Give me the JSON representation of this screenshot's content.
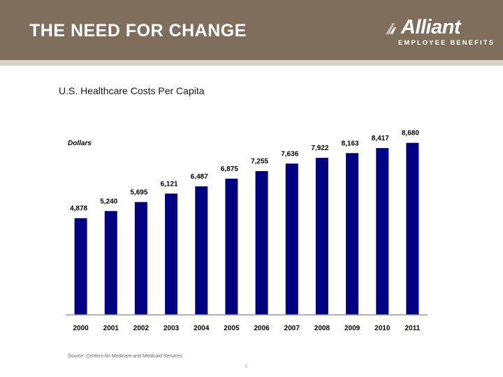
{
  "header": {
    "title": "THE NEED FOR CHANGE",
    "logo": {
      "name": "Alliant",
      "tagline": "EMPLOYEE BENEFITS"
    },
    "colors": {
      "band": "#7f6e5b",
      "rule": "#d9d2c7",
      "text": "#ffffff"
    }
  },
  "chart_data": {
    "type": "bar",
    "title": "U.S. Healthcare Costs Per Capita",
    "ylabel": "Dollars",
    "xlabel": "",
    "categories": [
      "2000",
      "2001",
      "2002",
      "2003",
      "2004",
      "2005",
      "2006",
      "2007",
      "2008",
      "2009",
      "2010",
      "2011"
    ],
    "values": [
      4878,
      5240,
      5695,
      6121,
      6487,
      6875,
      7255,
      7636,
      7922,
      8163,
      8417,
      8680
    ],
    "value_labels": [
      "4,878",
      "5,240",
      "5,695",
      "6,121",
      "6,487",
      "6,875",
      "7,255",
      "7,636",
      "7,922",
      "8,163",
      "8,417",
      "8,680"
    ],
    "ylim": [
      0,
      9900
    ],
    "grid": false,
    "legend": "none",
    "bar_color": "#000080"
  },
  "footer": {
    "source": "Source: Centers for Medicare and Medicaid Services",
    "page_mark": "4"
  }
}
